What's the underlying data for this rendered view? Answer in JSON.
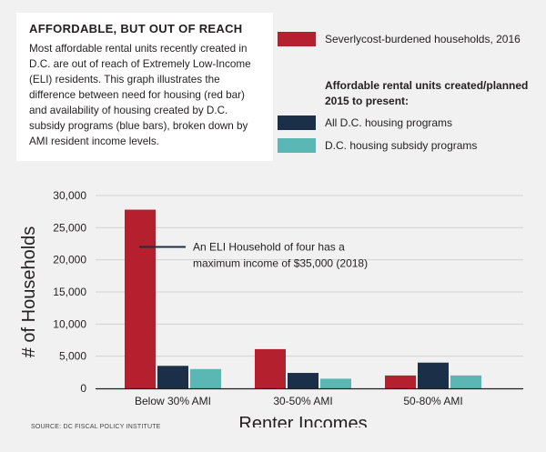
{
  "info": {
    "title": "AFFORDABLE, BUT OUT OF REACH",
    "body": "Most affordable rental units recently created in D.C. are out of reach of Extremely Low-Income (ELI) residents. This graph illustrates the difference between need for housing (red bar) and availability of housing created by D.C. subsidy programs (blue bars), broken down by AMI resident income levels."
  },
  "legend": {
    "subheading": "Affordable rental units created/planned 2015 to present:"
  },
  "source": "SOURCE: DC FISCAL POLICY INSTITUTE",
  "colors": {
    "red": "#b5202e",
    "navy": "#1b3048",
    "teal": "#5ab7b4",
    "grid": "#d2d2d2",
    "axis": "#231f20"
  },
  "chart_data": {
    "type": "bar",
    "xlabel": "Renter Incomes",
    "ylabel": "# of Households",
    "ylim": [
      0,
      30000
    ],
    "yticks": [
      0,
      5000,
      10000,
      15000,
      20000,
      25000,
      30000
    ],
    "ytick_labels": [
      "0",
      "5,000",
      "10,000",
      "15,000",
      "20,000",
      "25,000",
      "30,000"
    ],
    "categories": [
      "Below 30% AMI",
      "30-50% AMI",
      "50-80% AMI"
    ],
    "series": [
      {
        "name": "Severlycost-burdened households, 2016",
        "values": [
          27800,
          6100,
          2000
        ],
        "color": "#b5202e"
      },
      {
        "name": "All D.C. housing programs",
        "values": [
          3500,
          2400,
          4000
        ],
        "color": "#1b3048"
      },
      {
        "name": "D.C. housing subsidy programs",
        "values": [
          3000,
          1500,
          2000
        ],
        "color": "#5ab7b4"
      }
    ],
    "grid": true,
    "legend_position": "top-right",
    "annotation": {
      "text_line1": "An ELI Household of four has a",
      "text_line2": "maximum income of $35,000 (2018)",
      "y": 22000
    }
  }
}
